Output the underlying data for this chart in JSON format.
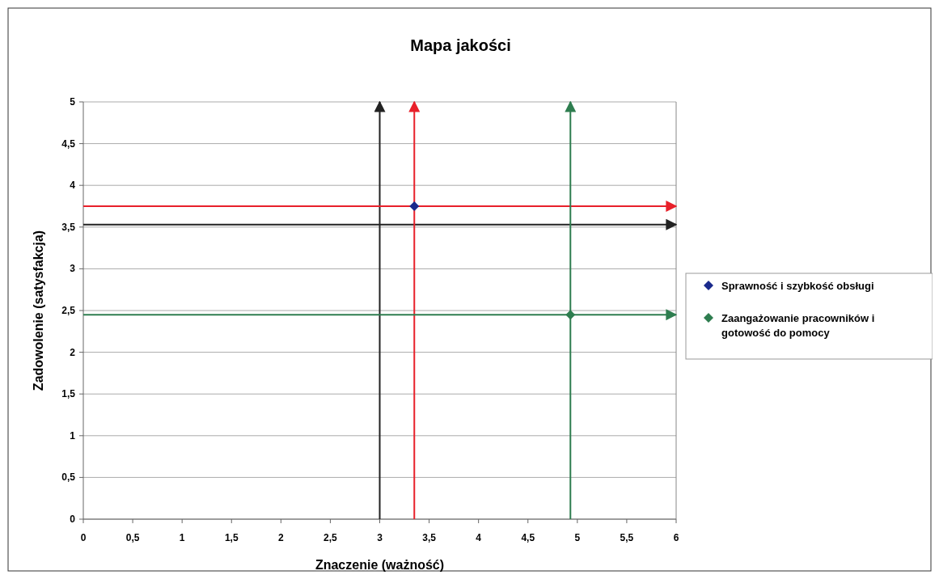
{
  "chart_data": {
    "type": "scatter",
    "title": "Mapa jakości",
    "xlabel": "Znaczenie (ważność)",
    "ylabel": "Zadowolenie (satysfakcja)",
    "xlim": [
      0,
      6
    ],
    "xticks": [
      0,
      {
        "value": 0.5,
        "label": "0,5"
      },
      1,
      {
        "value": 1.5,
        "label": "1,5"
      },
      2,
      {
        "value": 2.5,
        "label": "2,5"
      },
      3,
      {
        "value": 3.5,
        "label": "3,5"
      },
      4,
      {
        "value": 4.5,
        "label": "4,5"
      },
      5,
      {
        "value": 5.5,
        "label": "5,5"
      },
      6
    ],
    "ylim": [
      0,
      5
    ],
    "yticks": [
      0,
      {
        "value": 0.5,
        "label": "0,5"
      },
      1,
      {
        "value": 1.5,
        "label": "1,5"
      },
      2,
      {
        "value": 2.5,
        "label": "2,5"
      },
      3,
      {
        "value": 3.5,
        "label": "3,5"
      },
      4,
      {
        "value": 4.5,
        "label": "4,5"
      },
      5
    ],
    "grid": "y",
    "legend": "right",
    "marker": "diamond",
    "series": [
      {
        "name": "Sprawność i szybkość obsługi",
        "color": "#1a2a8c",
        "x": [
          3.35
        ],
        "values": [
          3.75
        ]
      },
      {
        "name": "Zaangażowanie pracowników i gotowość do pomocy",
        "color": "#2e7d4f",
        "x": [
          4.93
        ],
        "values": [
          2.45
        ]
      }
    ],
    "ref_lines": [
      {
        "axis": "x",
        "value": 3,
        "color": "#222222"
      },
      {
        "axis": "y",
        "value": 3.53,
        "color": "#222222"
      },
      {
        "axis": "x",
        "value": 3.35,
        "color": "#e8202a"
      },
      {
        "axis": "y",
        "value": 3.75,
        "color": "#e8202a"
      },
      {
        "axis": "x",
        "value": 4.93,
        "color": "#2e7d4f"
      },
      {
        "axis": "y",
        "value": 2.45,
        "color": "#2e7d4f"
      }
    ]
  }
}
